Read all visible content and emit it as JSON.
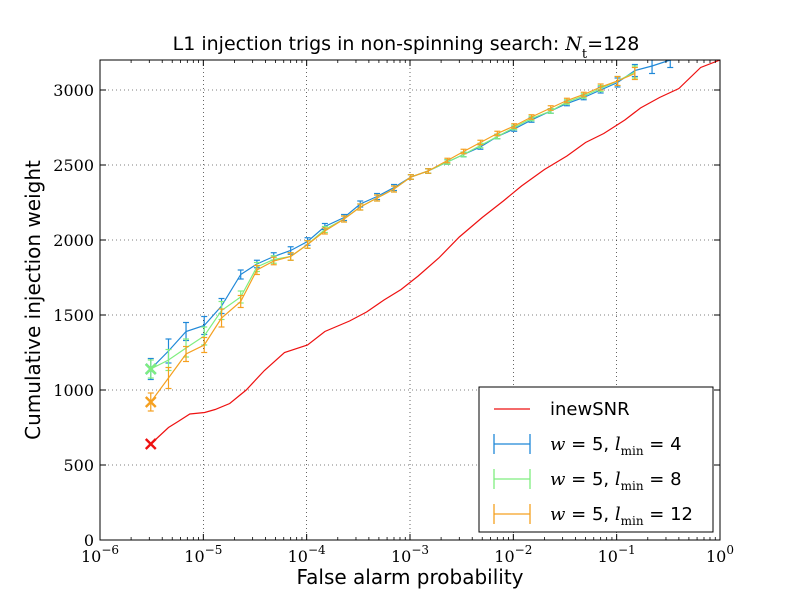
{
  "chart_data": {
    "type": "line",
    "title_prefix": "L1 injection trigs in non-spinning search: ",
    "title_var": "N",
    "title_var_sub": "t",
    "title_suffix": "=128",
    "xlabel": "False alarm probability",
    "ylabel": "Cumulative injection weight",
    "xscale": "log",
    "xlim": [
      1e-06,
      1
    ],
    "ylim": [
      0,
      3200
    ],
    "grid": true,
    "legend_position": "lower-right",
    "x_ticks": [
      {
        "value": 1e-06,
        "base": "10",
        "exp": "−6"
      },
      {
        "value": 1e-05,
        "base": "10",
        "exp": "−5"
      },
      {
        "value": 0.0001,
        "base": "10",
        "exp": "−4"
      },
      {
        "value": 0.001,
        "base": "10",
        "exp": "−3"
      },
      {
        "value": 0.01,
        "base": "10",
        "exp": "−2"
      },
      {
        "value": 0.1,
        "base": "10",
        "exp": "−1"
      },
      {
        "value": 1,
        "base": "10",
        "exp": "0"
      }
    ],
    "y_ticks": [
      0,
      500,
      1000,
      1500,
      2000,
      2500,
      3000
    ],
    "series": [
      {
        "name": "inewSNR",
        "color": "#ee1111",
        "marker": "x",
        "x": [
          3.1e-06,
          4.6e-06,
          5.7e-06,
          7.4e-06,
          1.03e-05,
          1.3e-05,
          1.8e-05,
          2.6e-05,
          3.9e-05,
          6.1e-05,
          0.000102,
          0.00015,
          0.00026,
          0.00038,
          0.00056,
          0.00082,
          0.0012,
          0.0019,
          0.003,
          0.005,
          0.008,
          0.012,
          0.02,
          0.033,
          0.05,
          0.075,
          0.12,
          0.17,
          0.26,
          0.4,
          0.65,
          1.0
        ],
        "y": [
          640,
          750,
          790,
          840,
          850,
          870,
          910,
          1000,
          1130,
          1250,
          1300,
          1390,
          1460,
          1520,
          1600,
          1670,
          1760,
          1880,
          2020,
          2150,
          2260,
          2360,
          2470,
          2560,
          2650,
          2710,
          2800,
          2880,
          2950,
          3010,
          3150,
          3200
        ]
      },
      {
        "name": "w = 5, l_min = 4",
        "legend_w": "w",
        "legend_eq1": " = 5, ",
        "legend_l": "l",
        "legend_sub": "min",
        "legend_eq2": " = 4",
        "color": "#1f88d8",
        "marker": "x",
        "x": [
          3.1e-06,
          4.6e-06,
          6.8e-06,
          1.02e-05,
          1.5e-05,
          2.3e-05,
          3.3e-05,
          4.8e-05,
          7e-05,
          0.000102,
          0.00015,
          0.00023,
          0.00033,
          0.00048,
          0.0007,
          0.00102,
          0.0015,
          0.0023,
          0.0033,
          0.0048,
          0.007,
          0.0102,
          0.015,
          0.023,
          0.033,
          0.048,
          0.07,
          0.102,
          0.15,
          0.22,
          0.33
        ],
        "y": [
          1140,
          1260,
          1390,
          1430,
          1560,
          1770,
          1840,
          1890,
          1930,
          1990,
          2090,
          2150,
          2240,
          2290,
          2350,
          2420,
          2460,
          2520,
          2570,
          2620,
          2690,
          2740,
          2800,
          2860,
          2910,
          2950,
          3000,
          3050,
          3130,
          3160,
          3200
        ],
        "err": [
          70,
          80,
          60,
          60,
          50,
          30,
          25,
          25,
          25,
          25,
          20,
          20,
          20,
          20,
          20,
          15,
          15,
          15,
          15,
          15,
          15,
          15,
          15,
          15,
          15,
          15,
          20,
          30,
          40,
          50,
          50
        ]
      },
      {
        "name": "w = 5, l_min = 8",
        "legend_w": "w",
        "legend_eq1": " = 5, ",
        "legend_l": "l",
        "legend_sub": "min",
        "legend_eq2": " = 8",
        "color": "#7fee7f",
        "marker": "x",
        "x": [
          3.1e-06,
          4.6e-06,
          6.8e-06,
          1.02e-05,
          1.5e-05,
          2.3e-05,
          3.3e-05,
          4.8e-05,
          7e-05,
          0.000102,
          0.00015,
          0.00023,
          0.00033,
          0.00048,
          0.0007,
          0.00102,
          0.0015,
          0.0023,
          0.0033,
          0.0048,
          0.007,
          0.0102,
          0.015,
          0.023,
          0.033,
          0.048,
          0.07,
          0.102,
          0.15
        ],
        "y": [
          1140,
          1200,
          1280,
          1360,
          1530,
          1620,
          1820,
          1870,
          1890,
          1970,
          2070,
          2140,
          2220,
          2280,
          2340,
          2420,
          2460,
          2520,
          2570,
          2630,
          2690,
          2750,
          2810,
          2860,
          2920,
          2960,
          3010,
          3060,
          3120
        ],
        "err": [
          60,
          70,
          60,
          60,
          60,
          40,
          30,
          25,
          25,
          25,
          20,
          20,
          20,
          20,
          20,
          15,
          15,
          15,
          15,
          15,
          15,
          15,
          15,
          15,
          15,
          15,
          20,
          30,
          40
        ]
      },
      {
        "name": "w = 5, l_min = 12",
        "legend_w": "w",
        "legend_eq1": " = 5, ",
        "legend_l": "l",
        "legend_sub": "min",
        "legend_eq2": " = 12",
        "color": "#f5a020",
        "marker": "x",
        "x": [
          3.1e-06,
          4.6e-06,
          6.8e-06,
          1.02e-05,
          1.5e-05,
          2.3e-05,
          3.3e-05,
          4.8e-05,
          7e-05,
          0.000102,
          0.00015,
          0.00023,
          0.00033,
          0.00048,
          0.0007,
          0.00102,
          0.0015,
          0.0023,
          0.0033,
          0.0048,
          0.007,
          0.0102,
          0.015,
          0.023,
          0.033,
          0.048,
          0.07,
          0.102,
          0.15
        ],
        "y": [
          920,
          1080,
          1240,
          1300,
          1480,
          1590,
          1800,
          1860,
          1890,
          1970,
          2060,
          2140,
          2220,
          2280,
          2340,
          2420,
          2460,
          2530,
          2590,
          2650,
          2710,
          2760,
          2820,
          2880,
          2930,
          2970,
          3020,
          3060,
          3110
        ],
        "err": [
          60,
          70,
          50,
          50,
          60,
          40,
          30,
          25,
          25,
          25,
          20,
          20,
          20,
          20,
          20,
          15,
          15,
          15,
          15,
          15,
          15,
          15,
          15,
          15,
          15,
          15,
          20,
          30,
          40
        ]
      }
    ]
  }
}
